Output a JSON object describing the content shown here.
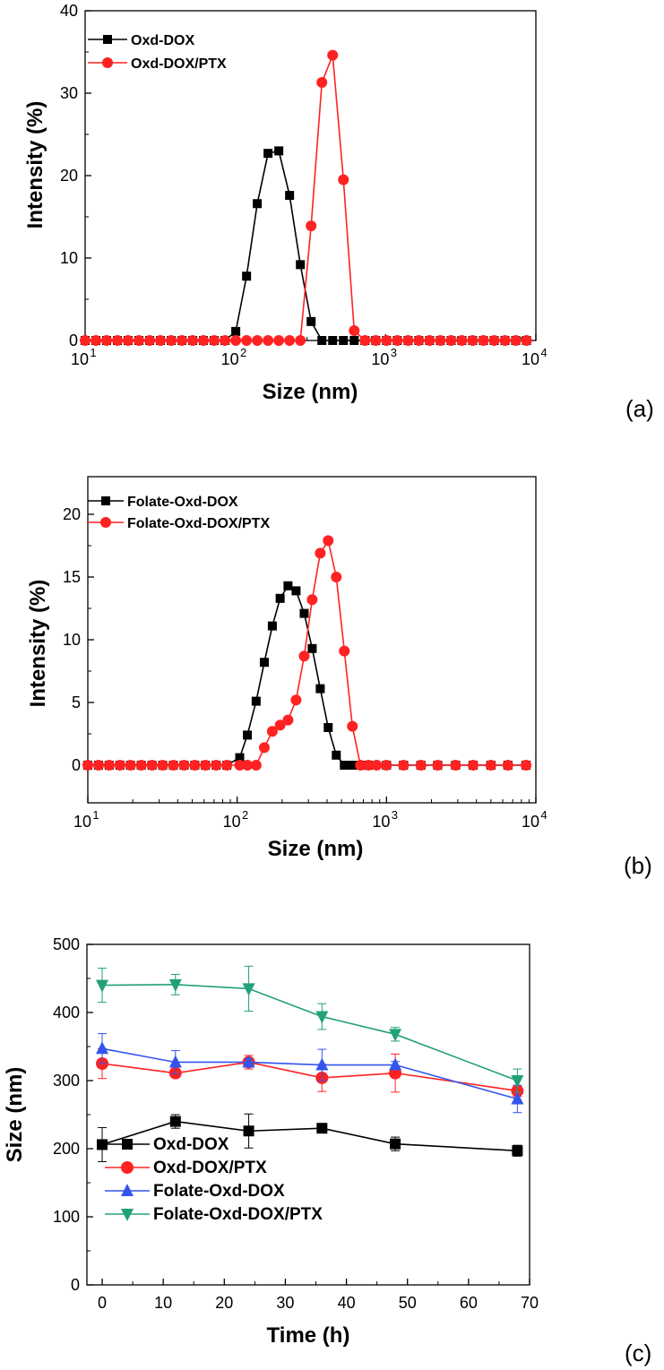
{
  "chart_data": [
    {
      "type": "line",
      "panel_label": "(a)",
      "xlabel": "Size (nm)",
      "ylabel": "Intensity (%)",
      "xscale": "log",
      "xlim": [
        10,
        10000
      ],
      "ylim": [
        0,
        40
      ],
      "xticks": [
        10,
        100,
        1000,
        10000
      ],
      "xtick_labels": [
        [
          "10",
          "1"
        ],
        [
          "10",
          "2"
        ],
        [
          "10",
          "3"
        ],
        [
          "10",
          "4"
        ]
      ],
      "yticks": [
        0,
        10,
        20,
        30,
        40
      ],
      "legend_position": "top-left",
      "series": [
        {
          "name": "Oxd-DOX",
          "color": "#000000",
          "marker": "square",
          "x": [
            10,
            11.8,
            13.9,
            16.4,
            19.3,
            22.8,
            26.9,
            31.7,
            37.4,
            44.1,
            52,
            61.3,
            72.3,
            85.3,
            100.6,
            118.7,
            139.9,
            165,
            194.6,
            229.5,
            270.7,
            319.3,
            376.6,
            444.2,
            523.9,
            617.9,
            728.7,
            859.5,
            1013.7,
            1195.6,
            1410.1,
            1663.1,
            1961.5,
            2313.5,
            2728.6,
            3218.2,
            3795.6,
            4476.7,
            5279.9,
            6227.3,
            7344.6,
            8662.4
          ],
          "y": [
            0,
            0,
            0,
            0,
            0,
            0,
            0,
            0,
            0,
            0,
            0,
            0,
            0,
            0,
            1.1,
            7.8,
            16.6,
            22.7,
            23,
            17.6,
            9.2,
            2.3,
            0,
            0,
            0,
            0,
            0,
            0,
            0,
            0,
            0,
            0,
            0,
            0,
            0,
            0,
            0,
            0,
            0,
            0,
            0,
            0
          ]
        },
        {
          "name": "Oxd-DOX/PTX",
          "color": "#ff2222",
          "marker": "circle",
          "x": [
            10,
            11.8,
            13.9,
            16.4,
            19.3,
            22.8,
            26.9,
            31.7,
            37.4,
            44.1,
            52,
            61.3,
            72.3,
            85.3,
            100.6,
            118.7,
            139.9,
            165,
            194.6,
            229.5,
            270.7,
            319.3,
            376.6,
            444.2,
            523.9,
            617.9,
            728.7,
            859.5,
            1013.7,
            1195.6,
            1410.1,
            1663.1,
            1961.5,
            2313.5,
            2728.6,
            3218.2,
            3795.6,
            4476.7,
            5279.9,
            6227.3,
            7344.6,
            8662.4
          ],
          "y": [
            0,
            0,
            0,
            0,
            0,
            0,
            0,
            0,
            0,
            0,
            0,
            0,
            0,
            0,
            0,
            0,
            0,
            0,
            0,
            0,
            0,
            13.9,
            31.3,
            34.6,
            19.5,
            1.2,
            0,
            0,
            0,
            0,
            0,
            0,
            0,
            0,
            0,
            0,
            0,
            0,
            0,
            0,
            0,
            0
          ]
        }
      ]
    },
    {
      "type": "line",
      "panel_label": "(b)",
      "xlabel": "Size (nm)",
      "ylabel": "Intensity (%)",
      "xscale": "log",
      "xlim": [
        10,
        10000
      ],
      "ylim": [
        -3,
        23
      ],
      "xticks": [
        10,
        100,
        1000,
        10000
      ],
      "xtick_labels": [
        [
          "10",
          "1"
        ],
        [
          "10",
          "2"
        ],
        [
          "10",
          "3"
        ],
        [
          "10",
          "4"
        ]
      ],
      "yticks": [
        0,
        5,
        10,
        15,
        20
      ],
      "legend_position": "top-left",
      "series": [
        {
          "name": "Folate-Oxd-DOX",
          "color": "#000000",
          "marker": "square",
          "x": [
            10,
            11.8,
            13.9,
            16.4,
            19.3,
            22.8,
            26.9,
            31.7,
            37.4,
            44.1,
            52,
            61.3,
            72.3,
            85.3,
            104,
            117,
            134,
            152,
            172,
            194,
            219,
            248,
            281,
            318,
            360,
            407,
            461,
            522,
            591,
            669,
            757,
            1000,
            1300,
            1700,
            2200,
            2900,
            3800,
            5000,
            6500,
            8600
          ],
          "y": [
            0,
            0,
            0,
            0,
            0,
            0,
            0,
            0,
            0,
            0,
            0,
            0,
            0,
            0,
            0.6,
            2.4,
            5.1,
            8.2,
            11.1,
            13.3,
            14.3,
            13.9,
            12.1,
            9.3,
            6.1,
            3,
            0.8,
            0,
            0,
            0,
            0,
            0,
            0,
            0,
            0,
            0,
            0,
            0,
            0,
            0
          ]
        },
        {
          "name": "Folate-Oxd-DOX/PTX",
          "color": "#ff2222",
          "marker": "circle",
          "x": [
            10,
            11.8,
            13.9,
            16.4,
            19.3,
            22.8,
            26.9,
            31.7,
            37.4,
            44.1,
            52,
            61.3,
            72.3,
            85.3,
            104,
            117,
            134,
            152,
            172,
            194,
            219,
            248,
            281,
            318,
            360,
            407,
            461,
            522,
            591,
            669,
            757,
            860,
            1000,
            1300,
            1700,
            2200,
            2900,
            3800,
            5000,
            6500,
            8600
          ],
          "y": [
            0,
            0,
            0,
            0,
            0,
            0,
            0,
            0,
            0,
            0,
            0,
            0,
            0,
            0,
            0,
            0,
            0,
            1.4,
            2.7,
            3.2,
            3.6,
            5.2,
            8.7,
            13.2,
            16.9,
            17.9,
            15,
            9.1,
            3.1,
            0,
            0,
            0,
            0,
            0,
            0,
            0,
            0,
            0,
            0,
            0,
            0
          ]
        }
      ]
    },
    {
      "type": "line",
      "panel_label": "(c)",
      "xlabel": "Time (h)",
      "ylabel": "Size (nm)",
      "xlim": [
        -2.5,
        70
      ],
      "ylim": [
        0,
        500
      ],
      "xticks": [
        0,
        10,
        20,
        30,
        40,
        50,
        60,
        70
      ],
      "yticks": [
        0,
        100,
        200,
        300,
        400,
        500
      ],
      "legend_position": "bottom-left",
      "error_bars": true,
      "series": [
        {
          "name": "Oxd-DOX",
          "color": "#000000",
          "marker": "square",
          "x": [
            0,
            12,
            24,
            36,
            48,
            68
          ],
          "y": [
            206,
            240,
            226,
            230,
            207,
            197
          ],
          "err": [
            25,
            10,
            25,
            5,
            10,
            8
          ]
        },
        {
          "name": "Oxd-DOX/PTX",
          "color": "#ff2222",
          "marker": "circle",
          "x": [
            0,
            12,
            24,
            36,
            48,
            68
          ],
          "y": [
            325,
            311,
            327,
            304,
            311,
            285
          ],
          "err": [
            22,
            6,
            10,
            20,
            28,
            8
          ]
        },
        {
          "name": "Folate-Oxd-DOX",
          "color": "#3355ee",
          "marker": "triangle-up",
          "x": [
            0,
            12,
            24,
            36,
            48,
            68
          ],
          "y": [
            347,
            327,
            327,
            323,
            323,
            273
          ],
          "err": [
            22,
            17,
            5,
            23,
            5,
            20
          ]
        },
        {
          "name": "Folate-Oxd-DOX/PTX",
          "color": "#22a07a",
          "marker": "triangle-down",
          "x": [
            0,
            12,
            24,
            36,
            48,
            68
          ],
          "y": [
            440,
            441,
            435,
            394,
            368,
            300
          ],
          "err": [
            25,
            15,
            33,
            19,
            10,
            17
          ]
        }
      ]
    }
  ]
}
